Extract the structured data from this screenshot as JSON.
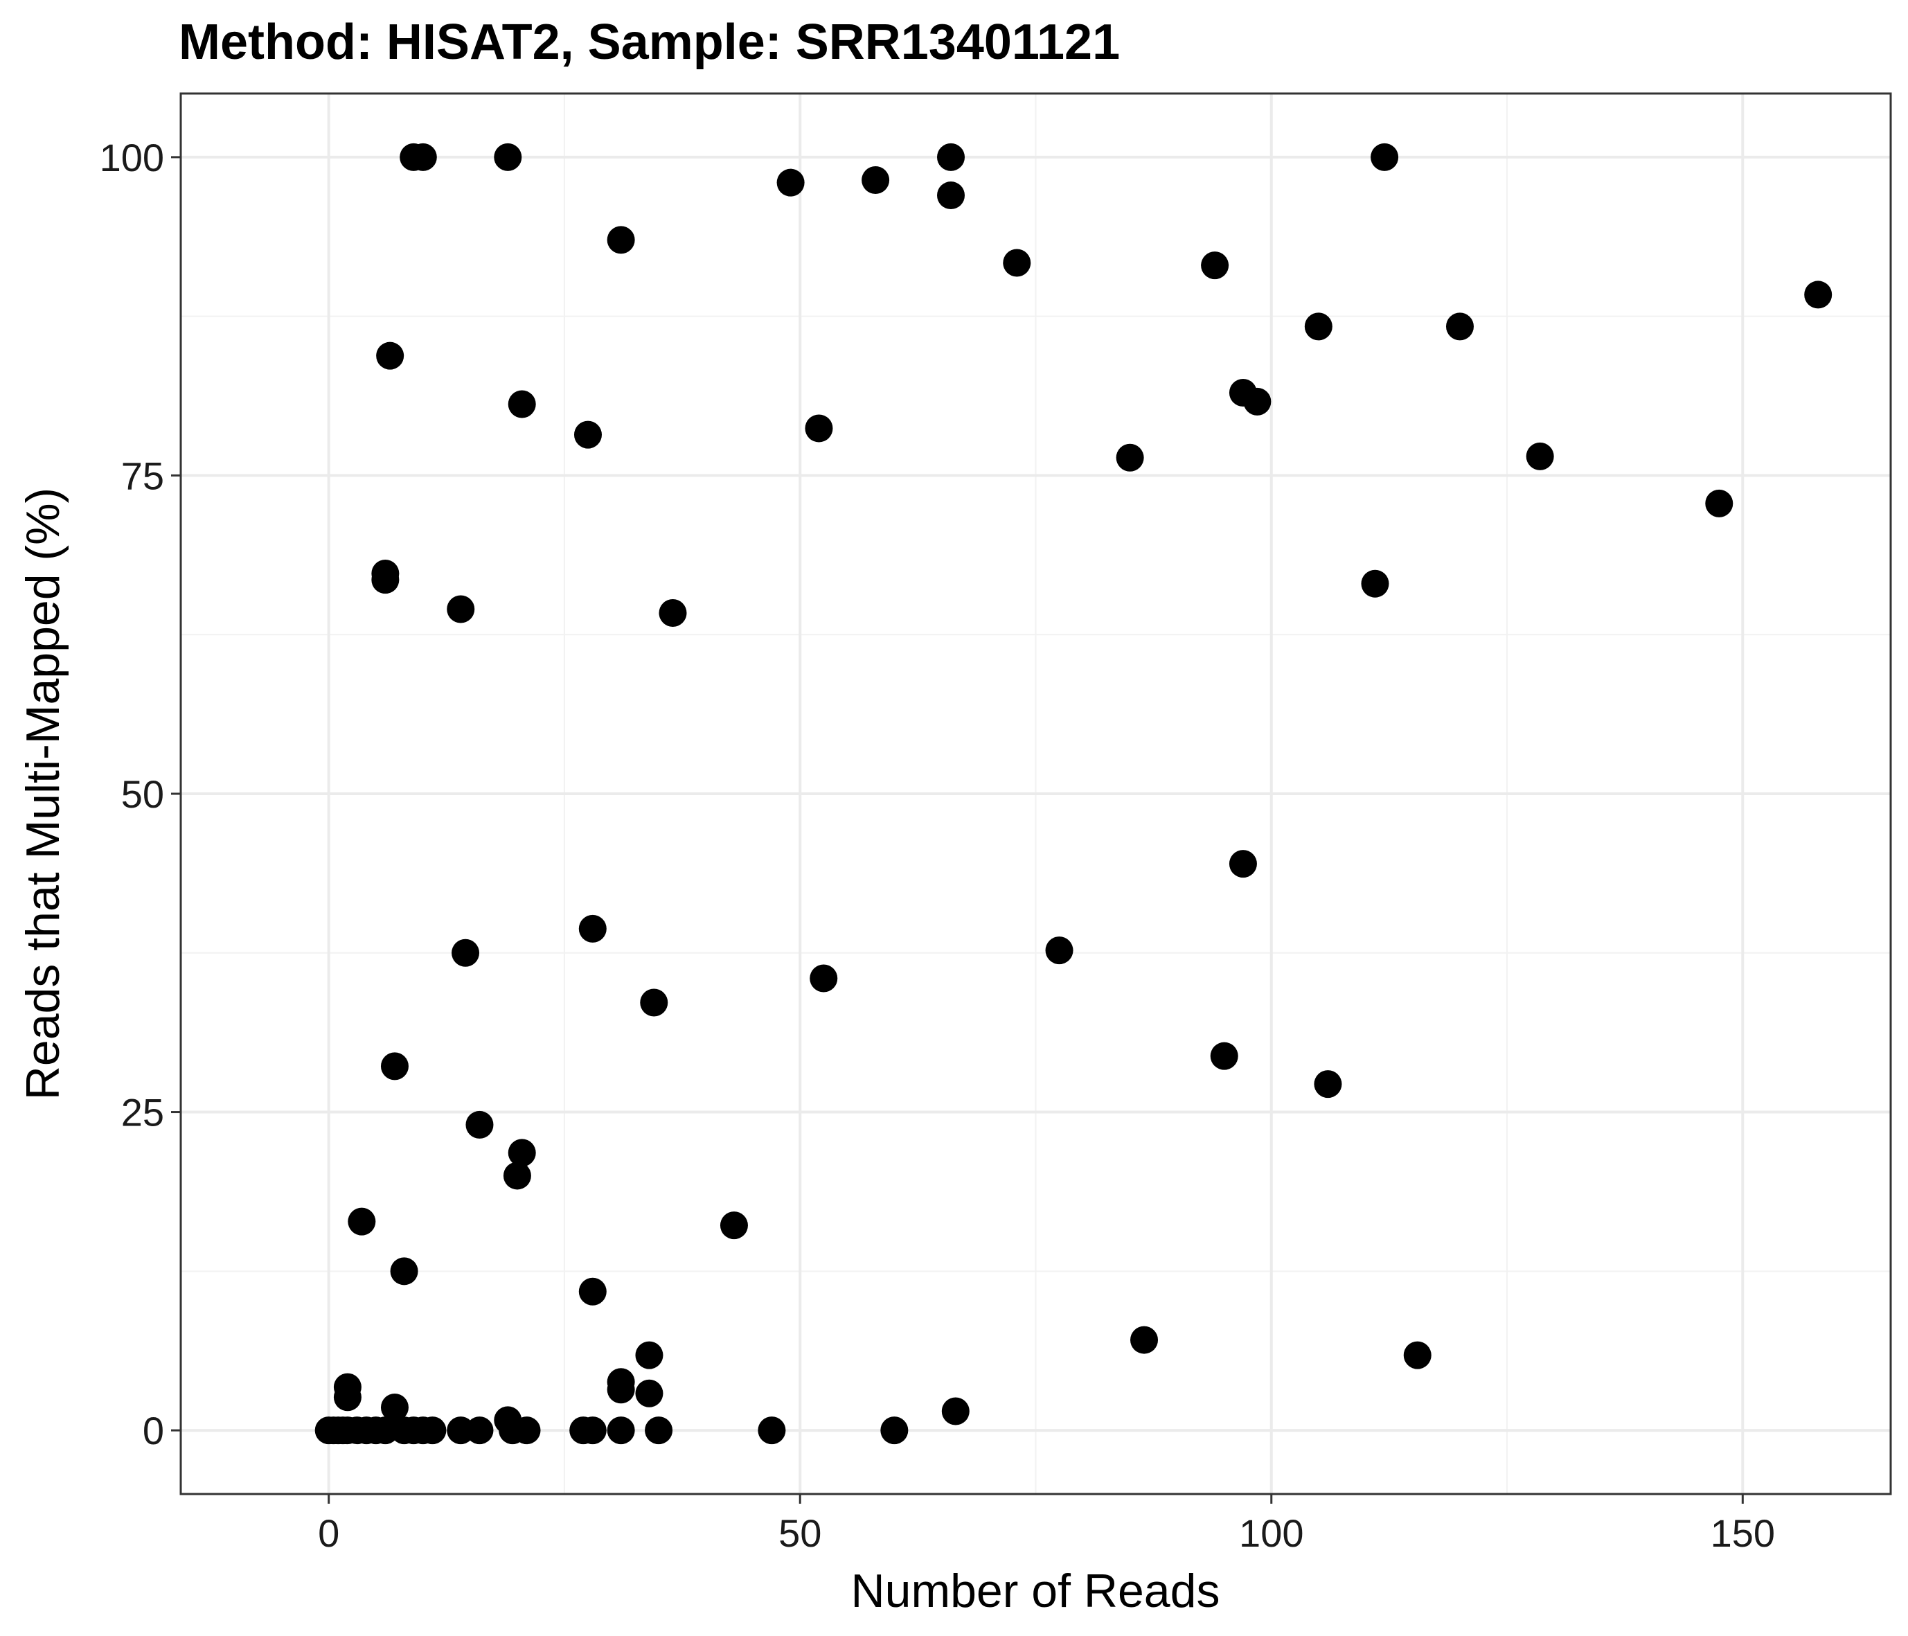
{
  "chart_data": {
    "type": "scatter",
    "title": "Method: HISAT2, Sample: SRR13401121",
    "xlabel": "Number of Reads",
    "ylabel": "Reads that Multi-Mapped (%)",
    "xlim": [
      -15.7,
      165.7
    ],
    "ylim": [
      -5,
      105
    ],
    "xticks": [
      0,
      50,
      100,
      150
    ],
    "yticks": [
      0,
      25,
      50,
      75,
      100
    ],
    "grid": true,
    "legend": "none",
    "point_color": "#000000",
    "points": [
      {
        "x": 9,
        "y": 100
      },
      {
        "x": 10,
        "y": 100
      },
      {
        "x": 19,
        "y": 100
      },
      {
        "x": 66,
        "y": 100
      },
      {
        "x": 112,
        "y": 100
      },
      {
        "x": 49,
        "y": 98
      },
      {
        "x": 58,
        "y": 98.2
      },
      {
        "x": 66,
        "y": 97
      },
      {
        "x": 31,
        "y": 93.5
      },
      {
        "x": 73,
        "y": 91.7
      },
      {
        "x": 94,
        "y": 91.5
      },
      {
        "x": 158,
        "y": 89.2
      },
      {
        "x": 105,
        "y": 86.7
      },
      {
        "x": 120,
        "y": 86.7
      },
      {
        "x": 6.5,
        "y": 84.4
      },
      {
        "x": 97,
        "y": 81.5
      },
      {
        "x": 98.5,
        "y": 80.8
      },
      {
        "x": 20.5,
        "y": 80.6
      },
      {
        "x": 52,
        "y": 78.7
      },
      {
        "x": 27.5,
        "y": 78.2
      },
      {
        "x": 85,
        "y": 76.4
      },
      {
        "x": 128.5,
        "y": 76.5
      },
      {
        "x": 147.5,
        "y": 72.8
      },
      {
        "x": 6,
        "y": 67.3
      },
      {
        "x": 6,
        "y": 66.8
      },
      {
        "x": 111,
        "y": 66.5
      },
      {
        "x": 14,
        "y": 64.5
      },
      {
        "x": 36.5,
        "y": 64.2
      },
      {
        "x": 97,
        "y": 44.5
      },
      {
        "x": 28,
        "y": 39.4
      },
      {
        "x": 77.5,
        "y": 37.7
      },
      {
        "x": 14.5,
        "y": 37.5
      },
      {
        "x": 52.5,
        "y": 35.5
      },
      {
        "x": 34.5,
        "y": 33.6
      },
      {
        "x": 95,
        "y": 29.4
      },
      {
        "x": 7,
        "y": 28.6
      },
      {
        "x": 106,
        "y": 27.2
      },
      {
        "x": 16,
        "y": 24
      },
      {
        "x": 20.5,
        "y": 21.8
      },
      {
        "x": 20,
        "y": 20
      },
      {
        "x": 3.5,
        "y": 16.4
      },
      {
        "x": 43,
        "y": 16.1
      },
      {
        "x": 8,
        "y": 12.5
      },
      {
        "x": 28,
        "y": 10.9
      },
      {
        "x": 86.5,
        "y": 7.1
      },
      {
        "x": 115.5,
        "y": 5.9
      },
      {
        "x": 34,
        "y": 5.9
      },
      {
        "x": 31,
        "y": 3.8
      },
      {
        "x": 31,
        "y": 3.2
      },
      {
        "x": 2,
        "y": 3.4
      },
      {
        "x": 2,
        "y": 2.6
      },
      {
        "x": 34,
        "y": 2.9
      },
      {
        "x": 7,
        "y": 1.8
      },
      {
        "x": 66.5,
        "y": 1.5
      },
      {
        "x": 19,
        "y": 0.8
      },
      {
        "x": 0,
        "y": 0
      },
      {
        "x": 0.5,
        "y": 0
      },
      {
        "x": 1,
        "y": 0
      },
      {
        "x": 1.5,
        "y": 0
      },
      {
        "x": 2,
        "y": 0
      },
      {
        "x": 3,
        "y": 0
      },
      {
        "x": 4,
        "y": 0
      },
      {
        "x": 5,
        "y": 0
      },
      {
        "x": 6,
        "y": 0
      },
      {
        "x": 8,
        "y": 0
      },
      {
        "x": 9,
        "y": 0
      },
      {
        "x": 10,
        "y": 0
      },
      {
        "x": 11,
        "y": 0
      },
      {
        "x": 14,
        "y": 0
      },
      {
        "x": 16,
        "y": 0
      },
      {
        "x": 19.5,
        "y": 0
      },
      {
        "x": 21,
        "y": 0
      },
      {
        "x": 27,
        "y": 0
      },
      {
        "x": 28,
        "y": 0
      },
      {
        "x": 31,
        "y": 0
      },
      {
        "x": 35,
        "y": 0
      },
      {
        "x": 47,
        "y": 0
      },
      {
        "x": 60,
        "y": 0
      }
    ]
  }
}
